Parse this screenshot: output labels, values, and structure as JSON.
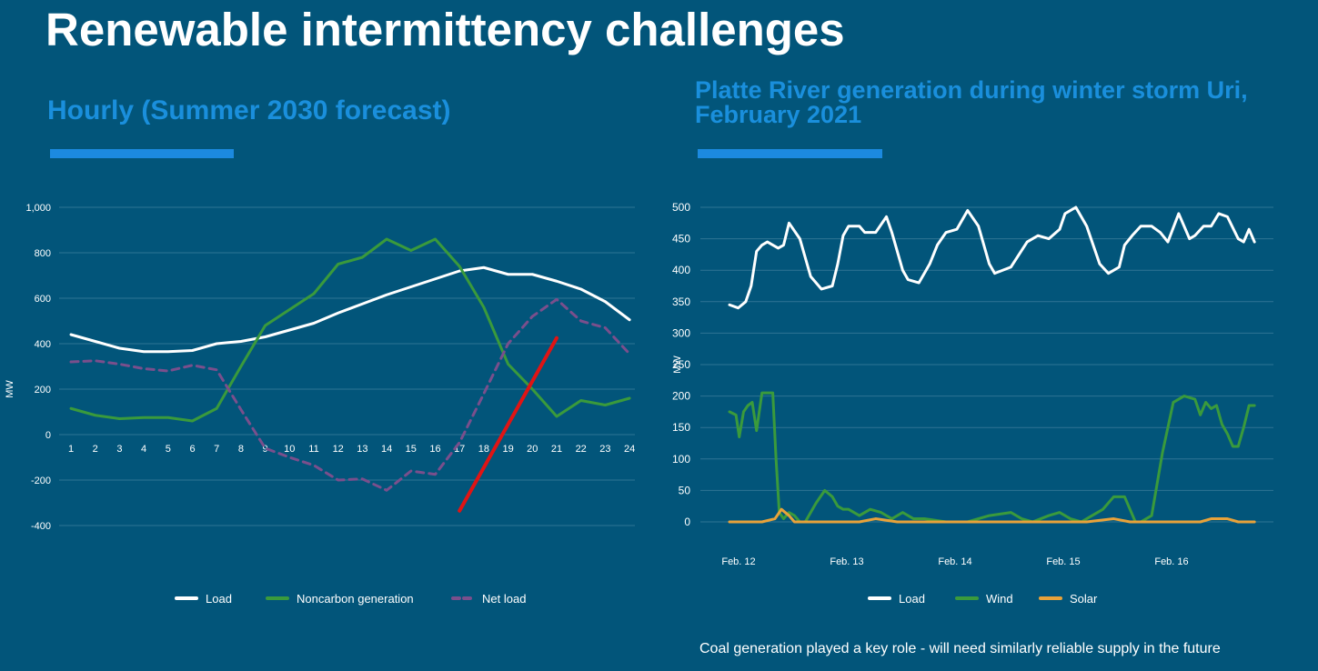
{
  "slide": {
    "title": "Renewable intermittency challenges",
    "note": "Coal generation played a key role - will need similarly reliable supply in the future"
  },
  "colors": {
    "background": "#02557a",
    "accent": "#1c8ae0",
    "subtitle": "#1a8fdc",
    "load": "#ffffff",
    "green": "#3a9a3c",
    "net_load": "#7a4f8c",
    "ramp": "#e01414",
    "solar": "#e8a23a",
    "grid": "#2f7594"
  },
  "chart_data": [
    {
      "type": "line",
      "title": "Hourly (Summer 2030 forecast)",
      "xlabel": "",
      "ylabel": "MW",
      "x": [
        1,
        2,
        3,
        4,
        5,
        6,
        7,
        8,
        9,
        10,
        11,
        12,
        13,
        14,
        15,
        16,
        17,
        18,
        19,
        20,
        21,
        22,
        23,
        24
      ],
      "xticks": [
        "1",
        "2",
        "3",
        "4",
        "5",
        "6",
        "7",
        "8",
        "9",
        "10",
        "11",
        "12",
        "13",
        "14",
        "15",
        "16",
        "17",
        "18",
        "19",
        "20",
        "21",
        "22",
        "23",
        "24"
      ],
      "ylim": [
        -400,
        1000
      ],
      "yticks": [
        -400,
        -200,
        0,
        200,
        400,
        600,
        800,
        1000
      ],
      "ytick_labels": [
        "-400",
        "-200",
        "0",
        "200",
        "400",
        "600",
        "800",
        "1,000"
      ],
      "grid": true,
      "legend": "bottom",
      "series": [
        {
          "name": "Load",
          "style": "solid",
          "values": [
            440,
            410,
            380,
            365,
            365,
            370,
            400,
            410,
            430,
            460,
            490,
            535,
            575,
            615,
            650,
            685,
            720,
            735,
            705,
            705,
            675,
            640,
            585,
            505
          ]
        },
        {
          "name": "Noncarbon generation",
          "style": "solid",
          "values": [
            115,
            85,
            70,
            75,
            75,
            60,
            115,
            300,
            480,
            550,
            620,
            750,
            780,
            860,
            810,
            860,
            740,
            560,
            310,
            200,
            80,
            150,
            130,
            160
          ]
        },
        {
          "name": "Net load",
          "style": "dashed",
          "values": [
            320,
            325,
            310,
            290,
            280,
            305,
            285,
            110,
            -60,
            -100,
            -135,
            -200,
            -195,
            -245,
            -160,
            -175,
            -35,
            180,
            400,
            520,
            595,
            500,
            470,
            355
          ]
        }
      ],
      "annotation": {
        "type": "line",
        "x": [
          17,
          21
        ],
        "y": [
          -335,
          425
        ]
      }
    },
    {
      "type": "line",
      "title": "Platte River generation during winter storm Uri, February 2021",
      "xlabel": "",
      "ylabel": "MW",
      "xticks": [
        "Feb. 12",
        "Feb. 13",
        "Feb. 14",
        "Feb. 15",
        "Feb. 16"
      ],
      "xlim": [
        0,
        5
      ],
      "ylim": [
        0,
        500
      ],
      "yticks": [
        0,
        50,
        100,
        150,
        200,
        250,
        300,
        350,
        400,
        450,
        500
      ],
      "grid": true,
      "legend": "bottom",
      "series": [
        {
          "name": "Load",
          "x": [
            0,
            0.08,
            0.15,
            0.2,
            0.25,
            0.3,
            0.35,
            0.45,
            0.5,
            0.55,
            0.65,
            0.75,
            0.85,
            0.95,
            1.0,
            1.05,
            1.1,
            1.2,
            1.25,
            1.35,
            1.45,
            1.5,
            1.6,
            1.65,
            1.75,
            1.85,
            1.92,
            2.0,
            2.1,
            2.2,
            2.3,
            2.4,
            2.45,
            2.6,
            2.75,
            2.85,
            2.95,
            3.05,
            3.1,
            3.2,
            3.3,
            3.42,
            3.5,
            3.6,
            3.65,
            3.72,
            3.8,
            3.9,
            3.98,
            4.05,
            4.15,
            4.25,
            4.3,
            4.38,
            4.45,
            4.52,
            4.6,
            4.7,
            4.75,
            4.8,
            4.85
          ],
          "values": [
            345,
            340,
            350,
            375,
            430,
            440,
            445,
            435,
            440,
            475,
            450,
            390,
            370,
            375,
            410,
            455,
            470,
            470,
            460,
            460,
            485,
            460,
            400,
            385,
            380,
            410,
            440,
            460,
            465,
            495,
            470,
            410,
            395,
            405,
            445,
            455,
            450,
            465,
            490,
            500,
            470,
            410,
            395,
            405,
            440,
            455,
            470,
            470,
            460,
            445,
            490,
            450,
            455,
            470,
            470,
            490,
            485,
            450,
            445,
            465,
            445
          ]
        },
        {
          "name": "Wind",
          "x": [
            0,
            0.06,
            0.09,
            0.13,
            0.17,
            0.21,
            0.25,
            0.3,
            0.35,
            0.4,
            0.43,
            0.46,
            0.5,
            0.55,
            0.6,
            0.65,
            0.7,
            0.8,
            0.88,
            0.95,
            1.0,
            1.05,
            1.1,
            1.2,
            1.3,
            1.4,
            1.5,
            1.6,
            1.7,
            1.8,
            2.0,
            2.2,
            2.4,
            2.6,
            2.7,
            2.8,
            2.95,
            3.05,
            3.15,
            3.25,
            3.35,
            3.45,
            3.55,
            3.65,
            3.75,
            3.8,
            3.9,
            3.95,
            4.0,
            4.1,
            4.2,
            4.3,
            4.35,
            4.4,
            4.45,
            4.5,
            4.55,
            4.6,
            4.65,
            4.7,
            4.75,
            4.8,
            4.85
          ],
          "values": [
            175,
            170,
            135,
            175,
            185,
            190,
            145,
            205,
            205,
            205,
            100,
            15,
            5,
            15,
            10,
            0,
            0,
            30,
            50,
            40,
            25,
            20,
            20,
            10,
            20,
            15,
            5,
            15,
            5,
            5,
            0,
            0,
            10,
            15,
            5,
            0,
            10,
            15,
            5,
            0,
            10,
            20,
            40,
            40,
            0,
            0,
            10,
            60,
            110,
            190,
            200,
            195,
            170,
            190,
            180,
            185,
            155,
            140,
            120,
            120,
            150,
            185,
            185
          ]
        },
        {
          "name": "Solar",
          "x": [
            0,
            0.3,
            0.42,
            0.48,
            0.55,
            0.6,
            0.7,
            1.0,
            1.2,
            1.35,
            1.55,
            2.0,
            2.3,
            2.5,
            3.0,
            3.3,
            3.55,
            3.7,
            4.0,
            4.35,
            4.45,
            4.55,
            4.6,
            4.7,
            4.85
          ],
          "values": [
            0,
            0,
            5,
            20,
            10,
            0,
            0,
            0,
            0,
            5,
            0,
            0,
            0,
            0,
            0,
            0,
            5,
            0,
            0,
            0,
            5,
            5,
            5,
            0,
            0
          ]
        }
      ]
    }
  ]
}
